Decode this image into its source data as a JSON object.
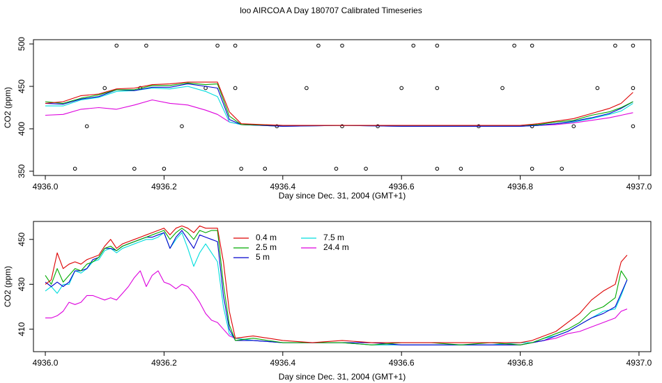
{
  "title": "loo AIRCOA A  Day 180707  Calibrated Timeseries",
  "colors": {
    "0.4 m": "#dd0000",
    "2.5 m": "#00aa00",
    "5 m": "#0000cc",
    "7.5 m": "#00dddd",
    "24.4 m": "#dd00dd",
    "points": "#000000"
  },
  "chart_data": [
    {
      "type": "line",
      "title": "",
      "xlabel": "Day since Dec. 31, 2004 (GMT+1)",
      "ylabel": "CO2 (ppm)",
      "xlim": [
        4935.98,
        4937.02
      ],
      "ylim": [
        345,
        505
      ],
      "xticks": [
        4936.0,
        4936.2,
        4936.4,
        4936.6,
        4936.8,
        4937.0
      ],
      "xtick_labels": [
        "4936.0",
        "4936.2",
        "4936.4",
        "4936.6",
        "4936.8",
        "4937.0"
      ],
      "yticks": [
        350,
        400,
        450,
        500
      ],
      "ytick_labels": [
        "350",
        "400",
        "450",
        "500"
      ],
      "grid": false,
      "legend": "none",
      "series": [
        {
          "name": "0.4 m",
          "x": [
            4936.0,
            4936.03,
            4936.06,
            4936.09,
            4936.12,
            4936.15,
            4936.18,
            4936.21,
            4936.24,
            4936.27,
            4936.29,
            4936.31,
            4936.33,
            4936.4,
            4936.5,
            4936.6,
            4936.7,
            4936.8,
            4936.83,
            4936.86,
            4936.89,
            4936.92,
            4936.95,
            4936.97,
            4936.99
          ],
          "y": [
            430,
            432,
            439,
            441,
            447,
            448,
            452,
            453,
            455,
            455,
            455,
            420,
            406,
            404,
            404,
            404,
            404,
            404,
            406,
            409,
            412,
            418,
            424,
            430,
            443
          ]
        },
        {
          "name": "2.5 m",
          "x": [
            4936.0,
            4936.03,
            4936.06,
            4936.09,
            4936.12,
            4936.15,
            4936.18,
            4936.21,
            4936.24,
            4936.27,
            4936.29,
            4936.31,
            4936.33,
            4936.4,
            4936.5,
            4936.6,
            4936.7,
            4936.8,
            4936.83,
            4936.86,
            4936.89,
            4936.92,
            4936.95,
            4936.97,
            4936.99
          ],
          "y": [
            432,
            430,
            436,
            440,
            446,
            446,
            451,
            451,
            454,
            452,
            453,
            415,
            405,
            404,
            404,
            404,
            404,
            404,
            405,
            408,
            410,
            416,
            420,
            425,
            432
          ]
        },
        {
          "name": "5 m",
          "x": [
            4936.0,
            4936.03,
            4936.06,
            4936.09,
            4936.12,
            4936.15,
            4936.18,
            4936.21,
            4936.24,
            4936.27,
            4936.29,
            4936.31,
            4936.33,
            4936.4,
            4936.5,
            4936.6,
            4936.7,
            4936.8,
            4936.83,
            4936.86,
            4936.89,
            4936.92,
            4936.95,
            4936.97,
            4936.99
          ],
          "y": [
            430,
            429,
            435,
            438,
            446,
            445,
            449,
            449,
            453,
            450,
            448,
            411,
            405,
            403,
            404,
            403,
            403,
            403,
            404,
            406,
            409,
            413,
            418,
            424,
            432
          ]
        },
        {
          "name": "7.5 m",
          "x": [
            4936.0,
            4936.03,
            4936.06,
            4936.09,
            4936.12,
            4936.15,
            4936.18,
            4936.21,
            4936.24,
            4936.27,
            4936.29,
            4936.31,
            4936.33,
            4936.4,
            4936.5,
            4936.6,
            4936.7,
            4936.8,
            4936.83,
            4936.86,
            4936.89,
            4936.92,
            4936.95,
            4936.97,
            4936.99
          ],
          "y": [
            427,
            427,
            434,
            437,
            444,
            445,
            448,
            447,
            450,
            444,
            438,
            408,
            405,
            403,
            404,
            403,
            403,
            403,
            404,
            406,
            408,
            412,
            417,
            421,
            430
          ]
        },
        {
          "name": "24.4 m",
          "x": [
            4936.0,
            4936.03,
            4936.06,
            4936.09,
            4936.12,
            4936.15,
            4936.18,
            4936.21,
            4936.24,
            4936.27,
            4936.29,
            4936.31,
            4936.33,
            4936.4,
            4936.5,
            4936.6,
            4936.7,
            4936.8,
            4936.83,
            4936.86,
            4936.89,
            4936.92,
            4936.95,
            4936.97,
            4936.99
          ],
          "y": [
            416,
            417,
            423,
            425,
            423,
            428,
            434,
            430,
            428,
            422,
            417,
            408,
            405,
            403,
            404,
            403,
            403,
            403,
            404,
            405,
            407,
            410,
            413,
            416,
            419
          ]
        },
        {
          "name": "points",
          "kind": "scatter",
          "x": [
            4936.05,
            4936.07,
            4936.1,
            4936.12,
            4936.15,
            4936.16,
            4936.17,
            4936.2,
            4936.23,
            4936.27,
            4936.29,
            4936.32,
            4936.32,
            4936.33,
            4936.37,
            4936.39,
            4936.44,
            4936.46,
            4936.49,
            4936.5,
            4936.5,
            4936.54,
            4936.56,
            4936.6,
            4936.62,
            4936.66,
            4936.66,
            4936.66,
            4936.7,
            4936.73,
            4936.77,
            4936.79,
            4936.82,
            4936.82,
            4936.82,
            4936.87,
            4936.89,
            4936.93,
            4936.96,
            4936.99,
            4936.99,
            4936.99
          ],
          "y": [
            353,
            403,
            448,
            498,
            353,
            448,
            498,
            353,
            403,
            448,
            498,
            498,
            448,
            353,
            353,
            403,
            448,
            498,
            353,
            403,
            498,
            353,
            403,
            448,
            498,
            498,
            448,
            353,
            353,
            403,
            448,
            498,
            353,
            403,
            498,
            353,
            403,
            448,
            498,
            498,
            448,
            403
          ]
        }
      ]
    },
    {
      "type": "line",
      "title": "",
      "xlabel": "Day since Dec. 31, 2004 (GMT+1)",
      "ylabel": "CO2 (ppm)",
      "xlim": [
        4935.98,
        4937.02
      ],
      "ylim": [
        400,
        458
      ],
      "xticks": [
        4936.0,
        4936.2,
        4936.4,
        4936.6,
        4936.8,
        4937.0
      ],
      "xtick_labels": [
        "4936.0",
        "4936.2",
        "4936.4",
        "4936.6",
        "4936.8",
        "4937.0"
      ],
      "yticks": [
        410,
        430,
        450
      ],
      "ytick_labels": [
        "410",
        "430",
        "450"
      ],
      "grid": false,
      "legend": "top-center",
      "series": [
        {
          "name": "0.4 m",
          "x": [
            4936.0,
            4936.01,
            4936.02,
            4936.03,
            4936.04,
            4936.05,
            4936.06,
            4936.07,
            4936.08,
            4936.09,
            4936.1,
            4936.11,
            4936.12,
            4936.13,
            4936.14,
            4936.15,
            4936.16,
            4936.17,
            4936.18,
            4936.19,
            4936.2,
            4936.21,
            4936.22,
            4936.23,
            4936.24,
            4936.25,
            4936.26,
            4936.27,
            4936.28,
            4936.29,
            4936.3,
            4936.31,
            4936.32,
            4936.35,
            4936.4,
            4936.45,
            4936.5,
            4936.55,
            4936.6,
            4936.65,
            4936.7,
            4936.75,
            4936.8,
            4936.82,
            4936.84,
            4936.86,
            4936.88,
            4936.9,
            4936.92,
            4936.94,
            4936.96,
            4936.97,
            4936.98
          ],
          "y": [
            430,
            432,
            444,
            437,
            439,
            440,
            439,
            441,
            442,
            443,
            447,
            450,
            446,
            448,
            449,
            450,
            451,
            452,
            453,
            454,
            455,
            452,
            455,
            456,
            455,
            453,
            456,
            455,
            455,
            455,
            440,
            418,
            406,
            407,
            405,
            404,
            405,
            404,
            404,
            404,
            404,
            404,
            404,
            405,
            407,
            409,
            413,
            417,
            423,
            427,
            430,
            440,
            443
          ]
        },
        {
          "name": "2.5 m",
          "x": [
            4936.0,
            4936.01,
            4936.02,
            4936.03,
            4936.04,
            4936.05,
            4936.06,
            4936.07,
            4936.08,
            4936.09,
            4936.1,
            4936.11,
            4936.12,
            4936.13,
            4936.14,
            4936.15,
            4936.16,
            4936.17,
            4936.18,
            4936.19,
            4936.2,
            4936.21,
            4936.22,
            4936.23,
            4936.24,
            4936.25,
            4936.26,
            4936.27,
            4936.28,
            4936.29,
            4936.3,
            4936.31,
            4936.32,
            4936.35,
            4936.4,
            4936.45,
            4936.5,
            4936.55,
            4936.6,
            4936.65,
            4936.7,
            4936.75,
            4936.8,
            4936.82,
            4936.84,
            4936.86,
            4936.88,
            4936.9,
            4936.92,
            4936.94,
            4936.96,
            4936.97,
            4936.98
          ],
          "y": [
            434,
            430,
            437,
            431,
            434,
            437,
            436,
            439,
            440,
            442,
            446,
            447,
            445,
            447,
            448,
            449,
            450,
            451,
            452,
            453,
            454,
            450,
            453,
            455,
            453,
            450,
            454,
            453,
            454,
            454,
            430,
            412,
            405,
            406,
            404,
            404,
            404,
            403,
            404,
            404,
            403,
            404,
            403,
            404,
            406,
            408,
            410,
            413,
            418,
            420,
            424,
            436,
            432
          ]
        },
        {
          "name": "5 m",
          "x": [
            4936.0,
            4936.01,
            4936.02,
            4936.03,
            4936.04,
            4936.05,
            4936.06,
            4936.07,
            4936.08,
            4936.09,
            4936.1,
            4936.11,
            4936.12,
            4936.13,
            4936.14,
            4936.15,
            4936.16,
            4936.17,
            4936.18,
            4936.19,
            4936.2,
            4936.21,
            4936.22,
            4936.23,
            4936.24,
            4936.25,
            4936.26,
            4936.27,
            4936.28,
            4936.29,
            4936.3,
            4936.31,
            4936.32,
            4936.35,
            4936.4,
            4936.45,
            4936.5,
            4936.55,
            4936.6,
            4936.65,
            4936.7,
            4936.75,
            4936.8,
            4936.82,
            4936.84,
            4936.86,
            4936.88,
            4936.9,
            4936.92,
            4936.94,
            4936.96,
            4936.97,
            4936.98
          ],
          "y": [
            431,
            429,
            431,
            429,
            431,
            436,
            436,
            437,
            441,
            442,
            446,
            446,
            445,
            447,
            448,
            449,
            450,
            451,
            451,
            452,
            453,
            446,
            451,
            454,
            450,
            446,
            452,
            451,
            450,
            449,
            425,
            410,
            405,
            405,
            404,
            404,
            404,
            404,
            403,
            403,
            403,
            403,
            403,
            404,
            405,
            407,
            409,
            412,
            415,
            417,
            420,
            426,
            432
          ]
        },
        {
          "name": "7.5 m",
          "x": [
            4936.0,
            4936.01,
            4936.02,
            4936.03,
            4936.04,
            4936.05,
            4936.06,
            4936.07,
            4936.08,
            4936.09,
            4936.1,
            4936.11,
            4936.12,
            4936.13,
            4936.14,
            4936.15,
            4936.16,
            4936.17,
            4936.18,
            4936.19,
            4936.2,
            4936.21,
            4936.22,
            4936.23,
            4936.24,
            4936.25,
            4936.26,
            4936.27,
            4936.28,
            4936.29,
            4936.3,
            4936.31,
            4936.32,
            4936.35,
            4936.4,
            4936.45,
            4936.5,
            4936.55,
            4936.6,
            4936.65,
            4936.7,
            4936.75,
            4936.8,
            4936.82,
            4936.84,
            4936.86,
            4936.88,
            4936.9,
            4936.92,
            4936.94,
            4936.96,
            4936.97,
            4936.98
          ],
          "y": [
            427,
            429,
            426,
            430,
            430,
            436,
            435,
            437,
            440,
            441,
            445,
            446,
            444,
            446,
            447,
            448,
            449,
            450,
            450,
            451,
            453,
            446,
            450,
            453,
            446,
            438,
            444,
            448,
            444,
            440,
            420,
            408,
            406,
            405,
            404,
            404,
            404,
            403,
            403,
            403,
            403,
            403,
            404,
            404,
            406,
            407,
            409,
            412,
            415,
            418,
            419,
            425,
            432
          ]
        },
        {
          "name": "24.4 m",
          "x": [
            4936.0,
            4936.01,
            4936.02,
            4936.03,
            4936.04,
            4936.05,
            4936.06,
            4936.07,
            4936.08,
            4936.09,
            4936.1,
            4936.11,
            4936.12,
            4936.13,
            4936.14,
            4936.15,
            4936.16,
            4936.17,
            4936.18,
            4936.19,
            4936.2,
            4936.21,
            4936.22,
            4936.23,
            4936.24,
            4936.25,
            4936.26,
            4936.27,
            4936.28,
            4936.29,
            4936.3,
            4936.31,
            4936.32,
            4936.35,
            4936.4,
            4936.45,
            4936.5,
            4936.55,
            4936.6,
            4936.65,
            4936.7,
            4936.75,
            4936.8,
            4936.82,
            4936.84,
            4936.86,
            4936.88,
            4936.9,
            4936.92,
            4936.94,
            4936.96,
            4936.97,
            4936.98
          ],
          "y": [
            415,
            415,
            416,
            418,
            422,
            421,
            422,
            425,
            425,
            424,
            423,
            424,
            423,
            426,
            429,
            433,
            436,
            429,
            434,
            436,
            431,
            430,
            428,
            430,
            429,
            426,
            422,
            417,
            414,
            413,
            410,
            407,
            406,
            405,
            404,
            404,
            404,
            403,
            403,
            403,
            403,
            403,
            403,
            404,
            405,
            406,
            408,
            409,
            411,
            413,
            415,
            418,
            419
          ]
        }
      ]
    }
  ]
}
